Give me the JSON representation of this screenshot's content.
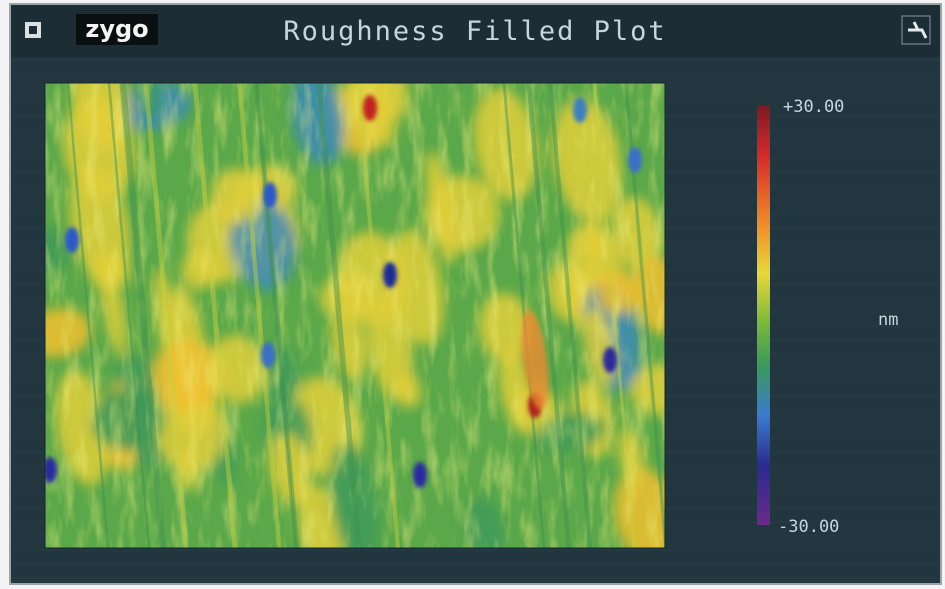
{
  "header": {
    "logo": "zygo",
    "title": "Roughness Filled Plot"
  },
  "colorbar": {
    "max_label": "+30.00",
    "min_label": "-30.00",
    "unit": "nm"
  }
}
